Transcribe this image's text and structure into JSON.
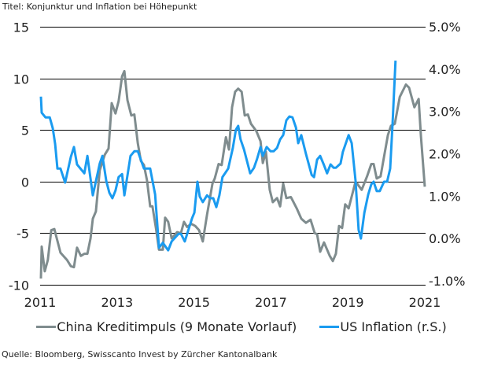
{
  "title": "Titel: Konjunktur und Inflation bei Höhepunkt",
  "source": "Quelle: Bloomberg, Swisscanto Invest by Zürcher Kantonalbank",
  "chart_data": {
    "type": "line",
    "title": "Titel: Konjunktur und Inflation bei Höhepunkt",
    "x_ticks": [
      "2011",
      "2013",
      "2015",
      "2017",
      "2019",
      "2021"
    ],
    "xlim": [
      2011,
      2021
    ],
    "y_left": {
      "ylim": [
        -10,
        15
      ],
      "ticks": [
        "15",
        "10",
        "5",
        "0",
        "-5",
        "-10"
      ],
      "tick_values": [
        15,
        10,
        5,
        0,
        -5,
        -10
      ]
    },
    "y_right": {
      "ylim": [
        -1,
        5
      ],
      "ticks": [
        "5.0%",
        "4.0%",
        "3.0%",
        "2.0%",
        "1.0%",
        "0.0%",
        "-1.0%"
      ],
      "tick_values": [
        5,
        4,
        3,
        2,
        1,
        0,
        -1
      ]
    },
    "grid": "horizontal",
    "legend_position": "bottom",
    "series": [
      {
        "name": "China Kreditimpuls (9 Monate Vorlauf)",
        "axis": "left",
        "color": "#7f8c8e",
        "x": [
          2011.02,
          2011.04,
          2011.12,
          2011.2,
          2011.29,
          2011.37,
          2011.53,
          2011.7,
          2011.8,
          2011.88,
          2011.96,
          2012.06,
          2012.15,
          2012.23,
          2012.31,
          2012.37,
          2012.45,
          2012.55,
          2012.68,
          2012.78,
          2012.86,
          2012.96,
          2013.04,
          2013.13,
          2013.19,
          2013.27,
          2013.37,
          2013.45,
          2013.54,
          2013.62,
          2013.7,
          2013.78,
          2013.86,
          2013.92,
          2014.01,
          2014.09,
          2014.19,
          2014.25,
          2014.33,
          2014.42,
          2014.56,
          2014.66,
          2014.74,
          2014.82,
          2014.93,
          2015.03,
          2015.13,
          2015.23,
          2015.34,
          2015.48,
          2015.54,
          2015.64,
          2015.72,
          2015.83,
          2015.91,
          2015.99,
          2016.07,
          2016.15,
          2016.24,
          2016.32,
          2016.4,
          2016.48,
          2016.62,
          2016.73,
          2016.79,
          2016.87,
          2016.97,
          2017.05,
          2017.16,
          2017.24,
          2017.32,
          2017.4,
          2017.52,
          2017.67,
          2017.79,
          2017.91,
          2018.03,
          2018.14,
          2018.2,
          2018.28,
          2018.38,
          2018.53,
          2018.61,
          2018.69,
          2018.77,
          2018.85,
          2018.93,
          2019.02,
          2019.2,
          2019.36,
          2019.5,
          2019.61,
          2019.67,
          2019.75,
          2019.85,
          2019.94,
          2020.04,
          2020.12,
          2020.22,
          2020.35,
          2020.51,
          2020.59,
          2020.73,
          2020.84,
          2020.9,
          2021.0
        ],
        "values": [
          -9.4,
          -6.3,
          -8.7,
          -7.6,
          -4.7,
          -4.6,
          -6.9,
          -7.6,
          -8.2,
          -8.3,
          -6.4,
          -7.2,
          -7.0,
          -7.0,
          -5.5,
          -3.6,
          -2.9,
          1.1,
          2.6,
          3.2,
          7.6,
          6.6,
          7.8,
          10.2,
          10.7,
          7.9,
          6.4,
          6.5,
          3.7,
          2.0,
          1.6,
          0.1,
          -2.4,
          -2.4,
          -4.5,
          -6.6,
          -6.6,
          -3.5,
          -3.9,
          -5.5,
          -4.9,
          -5.0,
          -3.9,
          -4.4,
          -4.1,
          -4.3,
          -4.7,
          -5.8,
          -3.2,
          -0.2,
          0.3,
          1.7,
          1.6,
          4.3,
          3.1,
          7.2,
          8.7,
          9.0,
          8.7,
          6.4,
          6.5,
          5.6,
          4.9,
          3.9,
          1.8,
          2.9,
          -0.8,
          -2.0,
          -1.6,
          -2.4,
          -0.2,
          -1.6,
          -1.5,
          -2.6,
          -3.6,
          -4.0,
          -3.7,
          -5.0,
          -5.1,
          -6.8,
          -5.9,
          -7.2,
          -7.7,
          -7.0,
          -4.3,
          -4.5,
          -2.2,
          -2.6,
          0.0,
          -0.8,
          0.5,
          1.7,
          1.7,
          0.3,
          0.5,
          2.4,
          4.5,
          5.4,
          5.6,
          8.2,
          9.4,
          9.1,
          7.2,
          8.0,
          4.4,
          -0.5
        ]
      },
      {
        "name": "US Inflation (r.S.)",
        "axis": "right",
        "color": "#1a9bf0",
        "x": [
          2011.02,
          2011.04,
          2011.14,
          2011.25,
          2011.33,
          2011.39,
          2011.45,
          2011.53,
          2011.65,
          2011.8,
          2011.88,
          2011.96,
          2012.15,
          2012.23,
          2012.37,
          2012.55,
          2012.62,
          2012.72,
          2012.8,
          2012.88,
          2012.96,
          2013.04,
          2013.13,
          2013.19,
          2013.35,
          2013.45,
          2013.54,
          2013.7,
          2013.86,
          2013.99,
          2014.09,
          2014.19,
          2014.33,
          2014.42,
          2014.6,
          2014.66,
          2014.76,
          2014.95,
          2015.01,
          2015.09,
          2015.15,
          2015.23,
          2015.34,
          2015.42,
          2015.5,
          2015.58,
          2015.66,
          2015.74,
          2015.89,
          2016.01,
          2016.09,
          2016.15,
          2016.21,
          2016.3,
          2016.46,
          2016.56,
          2016.64,
          2016.73,
          2016.79,
          2016.89,
          2016.99,
          2017.07,
          2017.16,
          2017.24,
          2017.32,
          2017.4,
          2017.48,
          2017.56,
          2017.65,
          2017.71,
          2017.79,
          2017.91,
          2018.06,
          2018.12,
          2018.2,
          2018.28,
          2018.38,
          2018.46,
          2018.55,
          2018.63,
          2018.69,
          2018.81,
          2018.87,
          2019.02,
          2019.1,
          2019.2,
          2019.28,
          2019.34,
          2019.43,
          2019.53,
          2019.61,
          2019.67,
          2019.75,
          2019.83,
          2019.94,
          2020.02,
          2020.1,
          2020.16,
          2020.24
        ],
        "values": [
          3.35,
          2.97,
          2.86,
          2.86,
          2.6,
          2.23,
          1.65,
          1.65,
          1.32,
          1.93,
          2.16,
          1.75,
          1.54,
          1.95,
          1.02,
          1.77,
          1.95,
          1.36,
          1.08,
          0.95,
          1.13,
          1.45,
          1.52,
          1.02,
          1.95,
          2.06,
          2.06,
          1.65,
          1.65,
          1.04,
          -0.22,
          -0.1,
          -0.28,
          -0.07,
          0.11,
          0.11,
          -0.07,
          0.48,
          0.61,
          1.34,
          0.99,
          0.86,
          1.02,
          0.95,
          0.95,
          0.74,
          1.02,
          1.45,
          1.65,
          2.14,
          2.57,
          2.66,
          2.34,
          2.1,
          1.54,
          1.67,
          1.88,
          2.16,
          1.95,
          2.16,
          2.06,
          2.06,
          2.14,
          2.34,
          2.44,
          2.79,
          2.88,
          2.86,
          2.62,
          2.25,
          2.44,
          2.0,
          1.5,
          1.45,
          1.86,
          1.95,
          1.73,
          1.54,
          1.75,
          1.67,
          1.67,
          1.77,
          2.04,
          2.44,
          2.25,
          1.36,
          0.2,
          0.0,
          0.61,
          1.04,
          1.28,
          1.34,
          1.12,
          1.12,
          1.34,
          1.34,
          1.65,
          2.66,
          4.2
        ]
      }
    ]
  }
}
